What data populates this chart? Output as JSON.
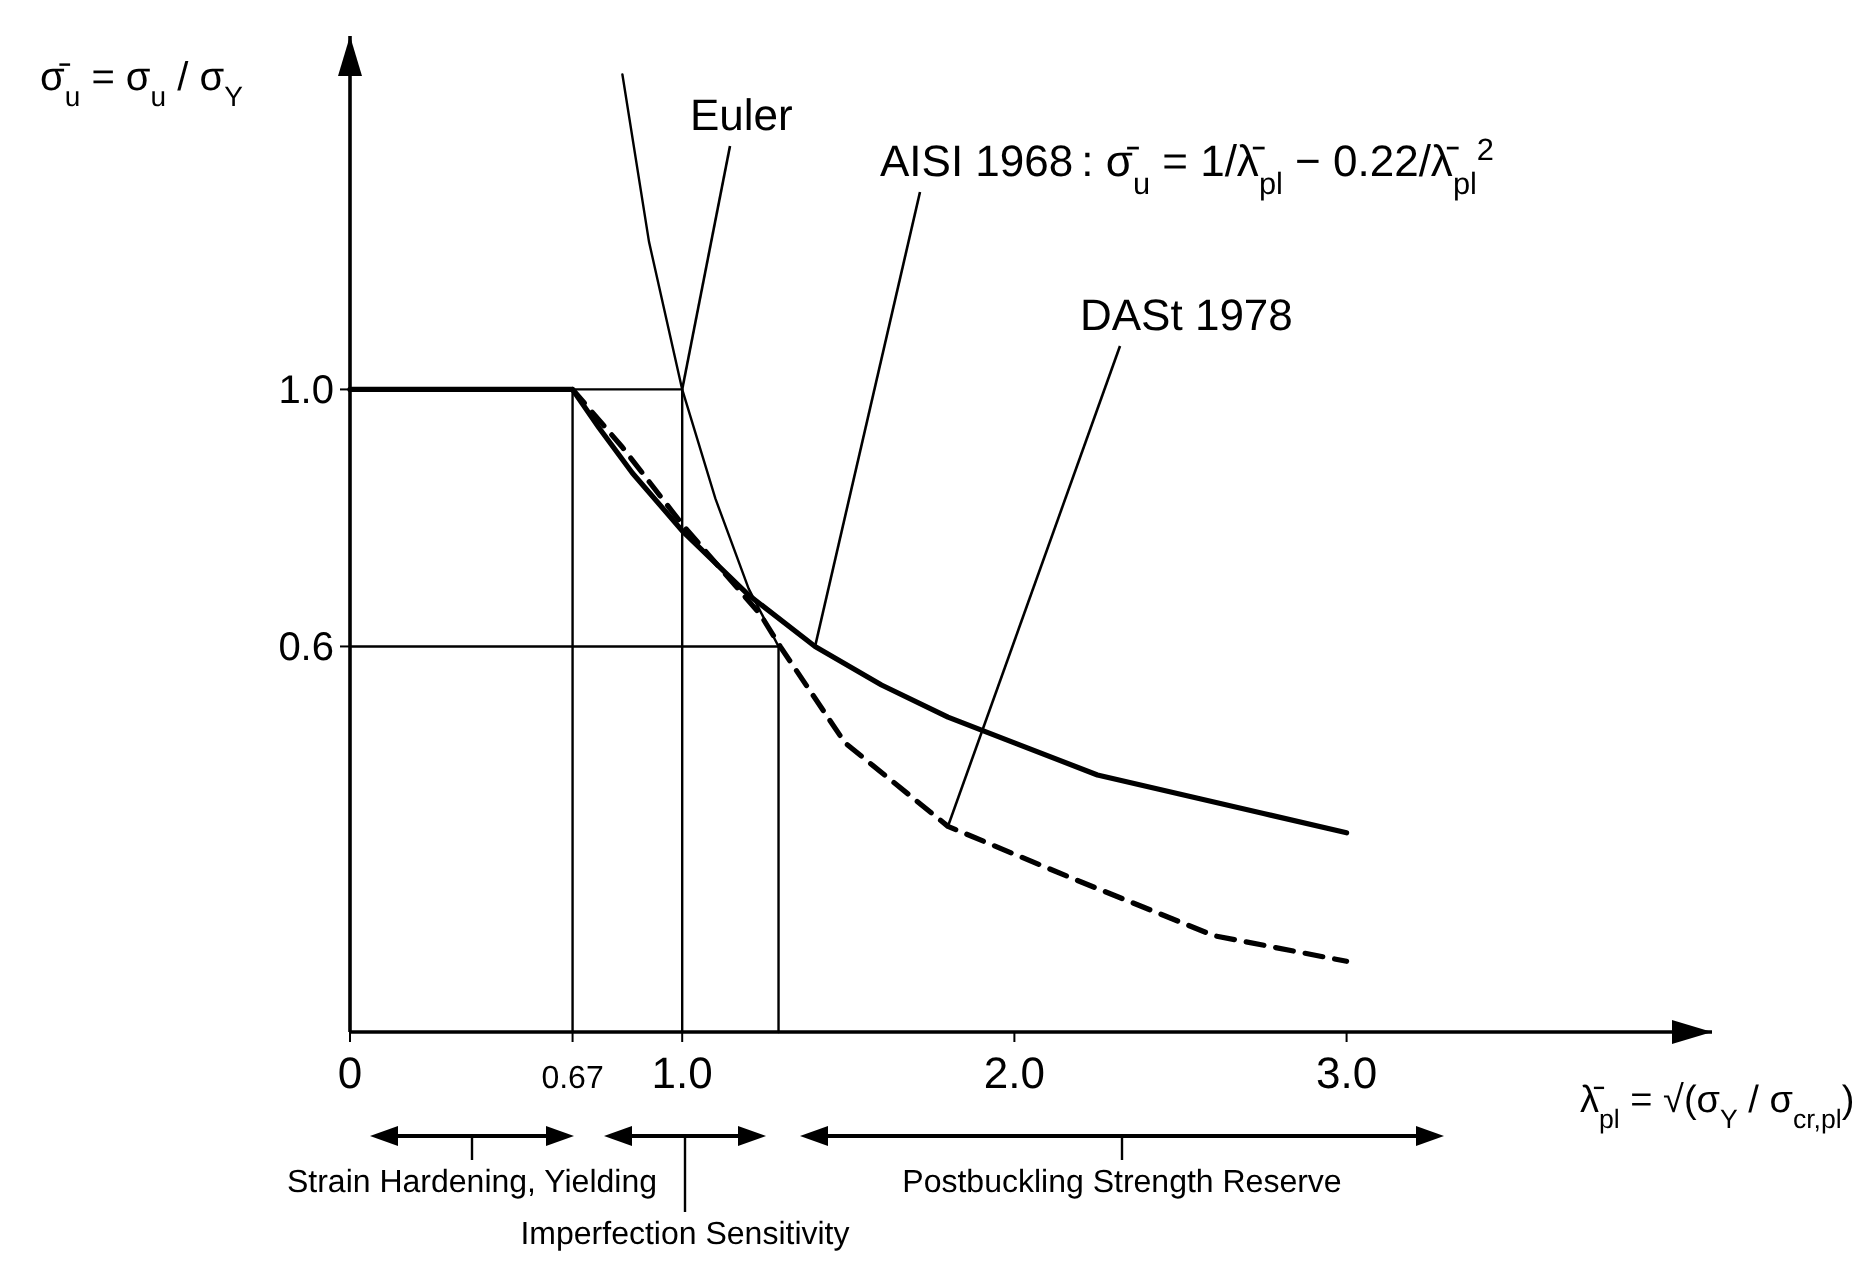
{
  "chart_data": {
    "type": "line",
    "xlabel": "λ̄$_{pl}$ = √(σ$_{Y}$ / σ$_{cr,pl}$)",
    "ylabel": "σ̄$_{u}$ = σ$_{u}$ / σ$_{Y}$",
    "xlim": [
      0,
      4.1
    ],
    "ylim": [
      0,
      1.55
    ],
    "xticks": [
      0,
      {
        "value": 0.67,
        "label": "0.67"
      },
      {
        "value": 1,
        "label": "1.0"
      },
      {
        "value": 2,
        "label": "2.0"
      },
      {
        "value": 3,
        "label": "3.0"
      }
    ],
    "yticks": [
      {
        "value": 0.6,
        "label": "0.6"
      },
      {
        "value": 1,
        "label": "1.0"
      }
    ],
    "series": [
      {
        "name": "Euler",
        "color": "#000000",
        "line_style": "solid",
        "x": [
          0.82,
          0.9,
          1.0,
          1.1,
          1.2,
          1.29
        ],
        "values": [
          1.49,
          1.23,
          1.0,
          0.83,
          0.69,
          0.6
        ]
      },
      {
        "name": "AISI 1968",
        "color": "#000000",
        "line_style": "solid",
        "x": [
          0,
          0.67,
          0.75,
          0.85,
          1.0,
          1.2,
          1.4,
          1.6,
          1.8,
          2.0,
          2.25,
          2.5,
          2.75,
          3.0
        ],
        "values": [
          1.0,
          1.0,
          0.94,
          0.87,
          0.78,
          0.68,
          0.6,
          0.54,
          0.49,
          0.45,
          0.4,
          0.37,
          0.34,
          0.31
        ]
      },
      {
        "name": "DASt 1978",
        "color": "#000000",
        "line_style": "dashed",
        "x": [
          0.67,
          0.82,
          1.0,
          1.235,
          1.295,
          1.49,
          1.8,
          2.17,
          2.6,
          3.0
        ],
        "values": [
          1.0,
          0.91,
          0.79,
          0.65,
          0.6,
          0.45,
          0.32,
          0.24,
          0.15,
          0.11
        ]
      },
      {
        "color": "#000000",
        "line_style": "solid",
        "x": [
          0.67,
          0.67,
          1.0,
          1.0
        ],
        "values": [
          0,
          1.0,
          1.0,
          0
        ]
      },
      {
        "color": "#000000",
        "line_style": "solid",
        "x": [
          0,
          1.29,
          1.29
        ],
        "values": [
          0.6,
          0.6,
          0
        ]
      }
    ],
    "annotations": [
      ": σ̄$_{u}$ = 1/λ̄$_{pl}$ − 0.22/λ̄$_{pl}$$^{2}$",
      "Strain Hardening, Yielding",
      "Imperfection Sensitivity",
      "Postbuckling Strength Reserve"
    ],
    "grid": false,
    "marker": "none"
  }
}
